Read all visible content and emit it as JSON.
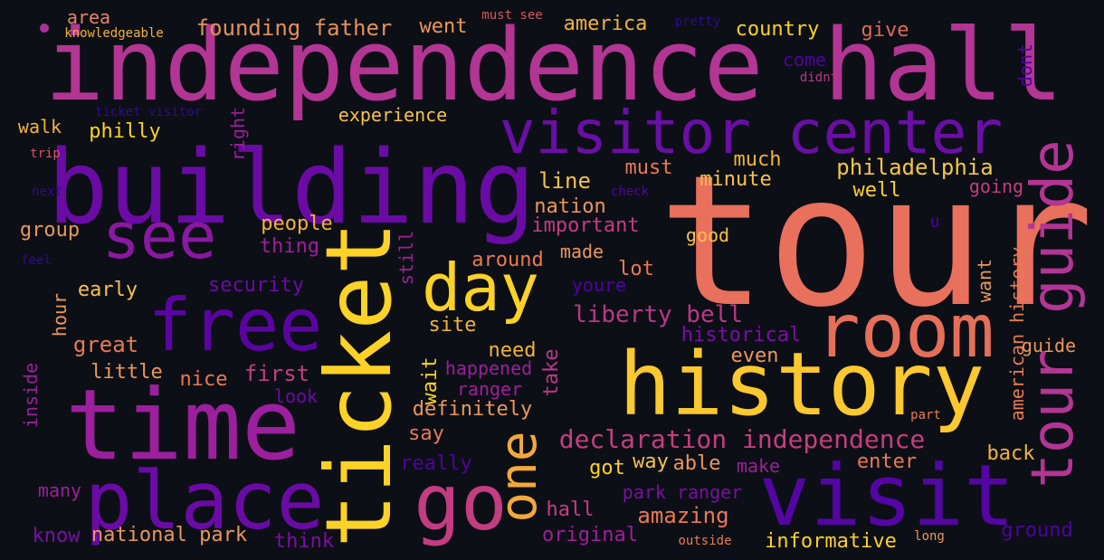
{
  "palette": {
    "background": "#0d0f16",
    "colors": [
      "#fcd226",
      "#f2b33a",
      "#e87a54",
      "#d2575f",
      "#b93888",
      "#9e1f9b",
      "#7a0ea3",
      "#4c04a0",
      "#2e0d8a"
    ]
  },
  "words": [
    {
      "text": "tour",
      "color": "#e8705d"
    },
    {
      "text": "independence hall",
      "color": "#b33594"
    },
    {
      "text": "building",
      "color": "#6a0ba6"
    },
    {
      "text": "visitor center",
      "color": "#6a0fa5"
    },
    {
      "text": "history",
      "color": "#fbc830"
    },
    {
      "text": "time",
      "color": "#9c1f9d"
    },
    {
      "text": "ticket",
      "color": "#fcd226"
    },
    {
      "text": "visit",
      "color": "#5306a3"
    },
    {
      "text": "place",
      "color": "#6a0ba6"
    },
    {
      "text": "tour guide",
      "color": "#b33594"
    },
    {
      "text": "room",
      "color": "#e4705a"
    },
    {
      "text": "free",
      "color": "#5a05a2"
    },
    {
      "text": "see",
      "color": "#8a18a2"
    },
    {
      "text": "go",
      "color": "#c33d80"
    },
    {
      "text": "day",
      "color": "#fcd226"
    },
    {
      "text": "one",
      "color": "#f2a93b"
    },
    {
      "text": "declaration independence",
      "color": "#c43f7d"
    },
    {
      "text": "liberty bell",
      "color": "#b93888"
    },
    {
      "text": "philadelphia",
      "color": "#f4c845"
    },
    {
      "text": "founding father",
      "color": "#e1915a"
    },
    {
      "text": "american history",
      "color": "#e87a54"
    },
    {
      "text": "experience",
      "color": "#f6c24b"
    },
    {
      "text": "america",
      "color": "#f2b33a"
    },
    {
      "text": "country",
      "color": "#fcd226"
    },
    {
      "text": "went",
      "color": "#e8985c"
    },
    {
      "text": "give",
      "color": "#dd6a5c"
    },
    {
      "text": "area",
      "color": "#e6836a"
    },
    {
      "text": "knowledgeable",
      "color": "#f2b33a"
    },
    {
      "text": "must see",
      "color": "#d2575f"
    },
    {
      "text": "pretty",
      "color": "#2e0d8a"
    },
    {
      "text": "come",
      "color": "#4c04a0"
    },
    {
      "text": "didnt",
      "color": "#b93888"
    },
    {
      "text": "dont",
      "color": "#4c04a0"
    },
    {
      "text": "ticket visitor",
      "color": "#2e0d8a"
    },
    {
      "text": "walk",
      "color": "#f2b33a"
    },
    {
      "text": "philly",
      "color": "#fcd226"
    },
    {
      "text": "right",
      "color": "#9e1f9b"
    },
    {
      "text": "trip",
      "color": "#d2575f"
    },
    {
      "text": "next",
      "color": "#2e0d8a"
    },
    {
      "text": "group",
      "color": "#e8985c"
    },
    {
      "text": "feel",
      "color": "#2e0d8a"
    },
    {
      "text": "people",
      "color": "#f2b33a"
    },
    {
      "text": "thing",
      "color": "#9e1f9b"
    },
    {
      "text": "still",
      "color": "#9e1f9b"
    },
    {
      "text": "security",
      "color": "#6a0ba6"
    },
    {
      "text": "early",
      "color": "#f6c24b"
    },
    {
      "text": "hour",
      "color": "#e8985c"
    },
    {
      "text": "great",
      "color": "#e87a54"
    },
    {
      "text": "little",
      "color": "#e8985c"
    },
    {
      "text": "nice",
      "color": "#e87a54"
    },
    {
      "text": "first",
      "color": "#c33d80"
    },
    {
      "text": "look",
      "color": "#6a0ba6"
    },
    {
      "text": "inside",
      "color": "#9e1f9b"
    },
    {
      "text": "line",
      "color": "#f6c24b"
    },
    {
      "text": "nation",
      "color": "#e8985c"
    },
    {
      "text": "check",
      "color": "#4c04a0"
    },
    {
      "text": "must",
      "color": "#e87a54"
    },
    {
      "text": "much",
      "color": "#f2b33a"
    },
    {
      "text": "minute",
      "color": "#f6c24b"
    },
    {
      "text": "well",
      "color": "#fcd226"
    },
    {
      "text": "going",
      "color": "#c33d80"
    },
    {
      "text": "important",
      "color": "#c33d80"
    },
    {
      "text": "made",
      "color": "#e8985c"
    },
    {
      "text": "good",
      "color": "#f6c24b"
    },
    {
      "text": "u",
      "color": "#4c04a0"
    },
    {
      "text": "around",
      "color": "#e87a54"
    },
    {
      "text": "lot",
      "color": "#e87a54"
    },
    {
      "text": "youre",
      "color": "#4c04a0"
    },
    {
      "text": "want",
      "color": "#e8985c"
    },
    {
      "text": "site",
      "color": "#f2b33a"
    },
    {
      "text": "need",
      "color": "#f2b33a"
    },
    {
      "text": "historical",
      "color": "#7a0ea3"
    },
    {
      "text": "even",
      "color": "#e8985c"
    },
    {
      "text": "guide",
      "color": "#e8985c"
    },
    {
      "text": "happened",
      "color": "#9e1f9b"
    },
    {
      "text": "ranger",
      "color": "#9e1f9b"
    },
    {
      "text": "wait",
      "color": "#fcd226"
    },
    {
      "text": "take",
      "color": "#b93888"
    },
    {
      "text": "definitely",
      "color": "#e8985c"
    },
    {
      "text": "say",
      "color": "#e87a54"
    },
    {
      "text": "really",
      "color": "#4c04a0"
    },
    {
      "text": "got",
      "color": "#fcd226"
    },
    {
      "text": "way",
      "color": "#f6c24b"
    },
    {
      "text": "able",
      "color": "#e8985c"
    },
    {
      "text": "make",
      "color": "#9e1f9b"
    },
    {
      "text": "enter",
      "color": "#e87a54"
    },
    {
      "text": "part",
      "color": "#e87a54"
    },
    {
      "text": "back",
      "color": "#f2b33a"
    },
    {
      "text": "hall",
      "color": "#c33d80"
    },
    {
      "text": "park ranger",
      "color": "#7a0ea3"
    },
    {
      "text": "amazing",
      "color": "#e87a54"
    },
    {
      "text": "many",
      "color": "#9e1f9b"
    },
    {
      "text": "know",
      "color": "#7a0ea3"
    },
    {
      "text": "national park",
      "color": "#e8985c"
    },
    {
      "text": "think",
      "color": "#7a0ea3"
    },
    {
      "text": "original",
      "color": "#9e1f9b"
    },
    {
      "text": "outside",
      "color": "#e87a54"
    },
    {
      "text": "informative",
      "color": "#fcd226"
    },
    {
      "text": "long",
      "color": "#e8985c"
    },
    {
      "text": "ground",
      "color": "#4c04a0"
    }
  ]
}
